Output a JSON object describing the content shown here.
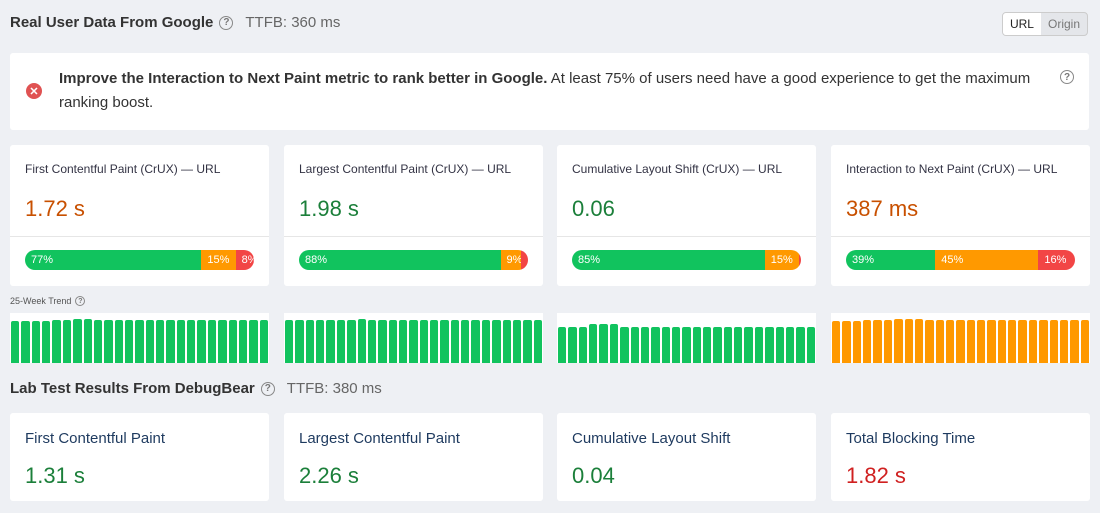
{
  "crux_section": {
    "title": "Real User Data From Google",
    "ttfb": "TTFB: 360 ms",
    "toggle": {
      "url_label": "URL",
      "origin_label": "Origin",
      "active": "URL"
    }
  },
  "alert": {
    "bold_text": "Improve the Interaction to Next Paint metric to rank better in Google.",
    "text": " At least 75% of users need have a good experience to get the maximum ranking boost."
  },
  "trend_label": "25-Week Trend",
  "colors": {
    "good": "#11c35e",
    "needs_improvement": "#ff9900",
    "poor": "#f24545",
    "value_good": "#1b7f3a",
    "value_needs_improvement": "#c85000",
    "value_poor": "#d02020"
  },
  "crux_cards": [
    {
      "label": "First Contentful Paint (CrUX) — URL",
      "value": "1.72 s",
      "status": "needs_improvement",
      "distribution": [
        {
          "rating": "good",
          "percent": 77,
          "label": "77%"
        },
        {
          "rating": "needs_improvement",
          "percent": 15,
          "label": "15%"
        },
        {
          "rating": "poor",
          "percent": 8,
          "label": "8%"
        }
      ],
      "trend": {
        "rating": "good",
        "levels": [
          0.84,
          0.84,
          0.84,
          0.84,
          0.86,
          0.86,
          0.88,
          0.88,
          0.86,
          0.86,
          0.86,
          0.86,
          0.86,
          0.86,
          0.86,
          0.86,
          0.86,
          0.86,
          0.86,
          0.86,
          0.86,
          0.86,
          0.86,
          0.86,
          0.86
        ]
      }
    },
    {
      "label": "Largest Contentful Paint (CrUX) — URL",
      "value": "1.98 s",
      "status": "good",
      "distribution": [
        {
          "rating": "good",
          "percent": 88,
          "label": "88%"
        },
        {
          "rating": "needs_improvement",
          "percent": 9,
          "label": "9%"
        },
        {
          "rating": "poor",
          "percent": 3,
          "label": ""
        }
      ],
      "trend": {
        "rating": "good",
        "levels": [
          0.86,
          0.86,
          0.86,
          0.86,
          0.86,
          0.86,
          0.86,
          0.88,
          0.86,
          0.86,
          0.86,
          0.86,
          0.86,
          0.86,
          0.86,
          0.86,
          0.86,
          0.86,
          0.86,
          0.86,
          0.86,
          0.86,
          0.86,
          0.86,
          0.86
        ]
      }
    },
    {
      "label": "Cumulative Layout Shift (CrUX) — URL",
      "value": "0.06",
      "status": "good",
      "distribution": [
        {
          "rating": "good",
          "percent": 85,
          "label": "85%"
        },
        {
          "rating": "needs_improvement",
          "percent": 15,
          "label": "15%"
        },
        {
          "rating": "poor",
          "percent": 1,
          "label": ""
        }
      ],
      "trend": {
        "rating": "good",
        "levels": [
          0.72,
          0.72,
          0.72,
          0.78,
          0.78,
          0.78,
          0.72,
          0.72,
          0.72,
          0.72,
          0.72,
          0.72,
          0.72,
          0.72,
          0.72,
          0.72,
          0.72,
          0.72,
          0.72,
          0.72,
          0.72,
          0.72,
          0.72,
          0.72,
          0.72
        ]
      }
    },
    {
      "label": "Interaction to Next Paint (CrUX) — URL",
      "value": "387 ms",
      "status": "needs_improvement",
      "distribution": [
        {
          "rating": "good",
          "percent": 39,
          "label": "39%"
        },
        {
          "rating": "needs_improvement",
          "percent": 45,
          "label": "45%"
        },
        {
          "rating": "poor",
          "percent": 16,
          "label": "16%"
        }
      ],
      "trend": {
        "rating": "needs_improvement",
        "levels": [
          0.84,
          0.84,
          0.84,
          0.86,
          0.86,
          0.86,
          0.88,
          0.88,
          0.88,
          0.86,
          0.86,
          0.86,
          0.86,
          0.86,
          0.86,
          0.86,
          0.86,
          0.86,
          0.86,
          0.86,
          0.86,
          0.86,
          0.86,
          0.86,
          0.86
        ]
      }
    }
  ],
  "lab_section": {
    "title": "Lab Test Results From DebugBear",
    "ttfb": "TTFB: 380 ms"
  },
  "lab_cards": [
    {
      "label": "First Contentful Paint",
      "value": "1.31 s",
      "status": "good"
    },
    {
      "label": "Largest Contentful Paint",
      "value": "2.26 s",
      "status": "good"
    },
    {
      "label": "Cumulative Layout Shift",
      "value": "0.04",
      "status": "good"
    },
    {
      "label": "Total Blocking Time",
      "value": "1.82 s",
      "status": "poor"
    }
  ]
}
